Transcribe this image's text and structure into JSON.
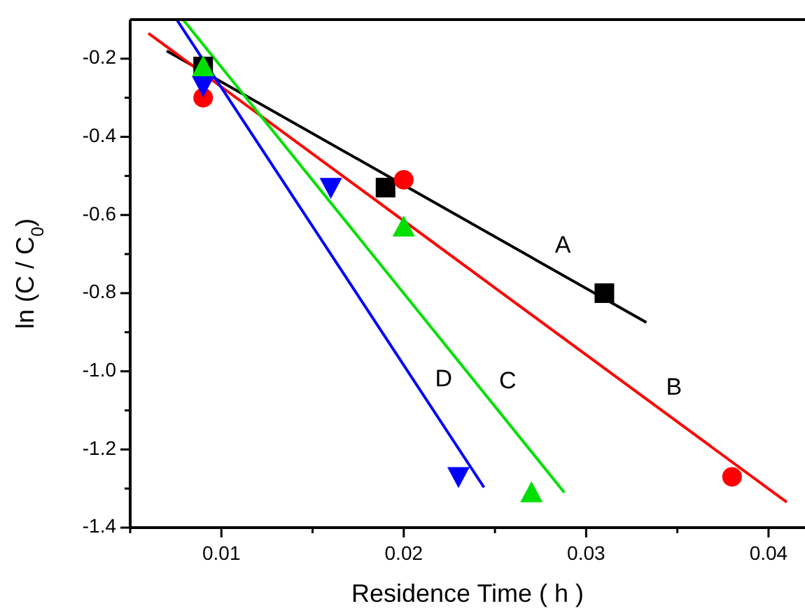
{
  "chart_data": {
    "type": "scatter",
    "xlabel": "Residence Time ( h )",
    "ylabel": "ln (C / C$_{0}$)",
    "xlim": [
      0.005,
      0.042
    ],
    "ylim": [
      -1.4,
      -0.1
    ],
    "xticks": [
      {
        "value": 0.005,
        "label": null
      },
      0.01,
      {
        "value": 0.015,
        "label": null
      },
      0.02,
      {
        "value": 0.025,
        "label": null
      },
      0.03,
      {
        "value": 0.035,
        "label": null
      },
      0.04
    ],
    "yticks": [
      {
        "value": -1.4,
        "label": "-1.4"
      },
      {
        "value": -1.3,
        "label": null
      },
      {
        "value": -1.2,
        "label": "-1.2"
      },
      {
        "value": -1.1,
        "label": null
      },
      {
        "value": -1.0,
        "label": "-1.0"
      },
      {
        "value": -0.9,
        "label": null
      },
      {
        "value": -0.8,
        "label": "-0.8"
      },
      {
        "value": -0.7,
        "label": null
      },
      {
        "value": -0.6,
        "label": "-0.6"
      },
      {
        "value": -0.5,
        "label": null
      },
      {
        "value": -0.4,
        "label": "-0.4"
      },
      {
        "value": -0.3,
        "label": null
      },
      {
        "value": -0.2,
        "label": "-0.2"
      }
    ],
    "series": [
      {
        "type": "line",
        "name": "A",
        "color": "#000000",
        "x": [
          0.007,
          0.0333
        ],
        "values": [
          -0.18,
          -0.875
        ],
        "marker": "none"
      },
      {
        "type": "line",
        "name": "B",
        "color": "#ff0000",
        "x": [
          0.006,
          0.041
        ],
        "values": [
          -0.135,
          -1.335
        ],
        "marker": "none"
      },
      {
        "type": "line",
        "name": "C",
        "color": "#00e000",
        "x": [
          0.0079,
          0.0288
        ],
        "values": [
          -0.1,
          -1.31
        ],
        "marker": "none"
      },
      {
        "type": "line",
        "name": "D",
        "color": "#0000ff",
        "x": [
          0.00755,
          0.0244
        ],
        "values": [
          -0.1,
          -1.297
        ],
        "marker": "none"
      },
      {
        "color": "#000000",
        "x": [
          0.009,
          0.019,
          0.031
        ],
        "values": [
          -0.22,
          -0.53,
          -0.8
        ],
        "marker": "square"
      },
      {
        "color": "#ff0000",
        "x": [
          0.009,
          0.02,
          0.038
        ],
        "values": [
          -0.3,
          -0.51,
          -1.27
        ],
        "marker": "circle"
      },
      {
        "color": "#00e000",
        "x": [
          0.009,
          0.02,
          0.027
        ],
        "values": [
          -0.22,
          -0.63,
          -1.31
        ],
        "marker": "triangle"
      },
      {
        "color": "#0000ff",
        "x": [
          0.009,
          0.016,
          0.023
        ],
        "values": [
          -0.27,
          -0.53,
          -1.27
        ],
        "marker": "triangle-down"
      }
    ]
  }
}
